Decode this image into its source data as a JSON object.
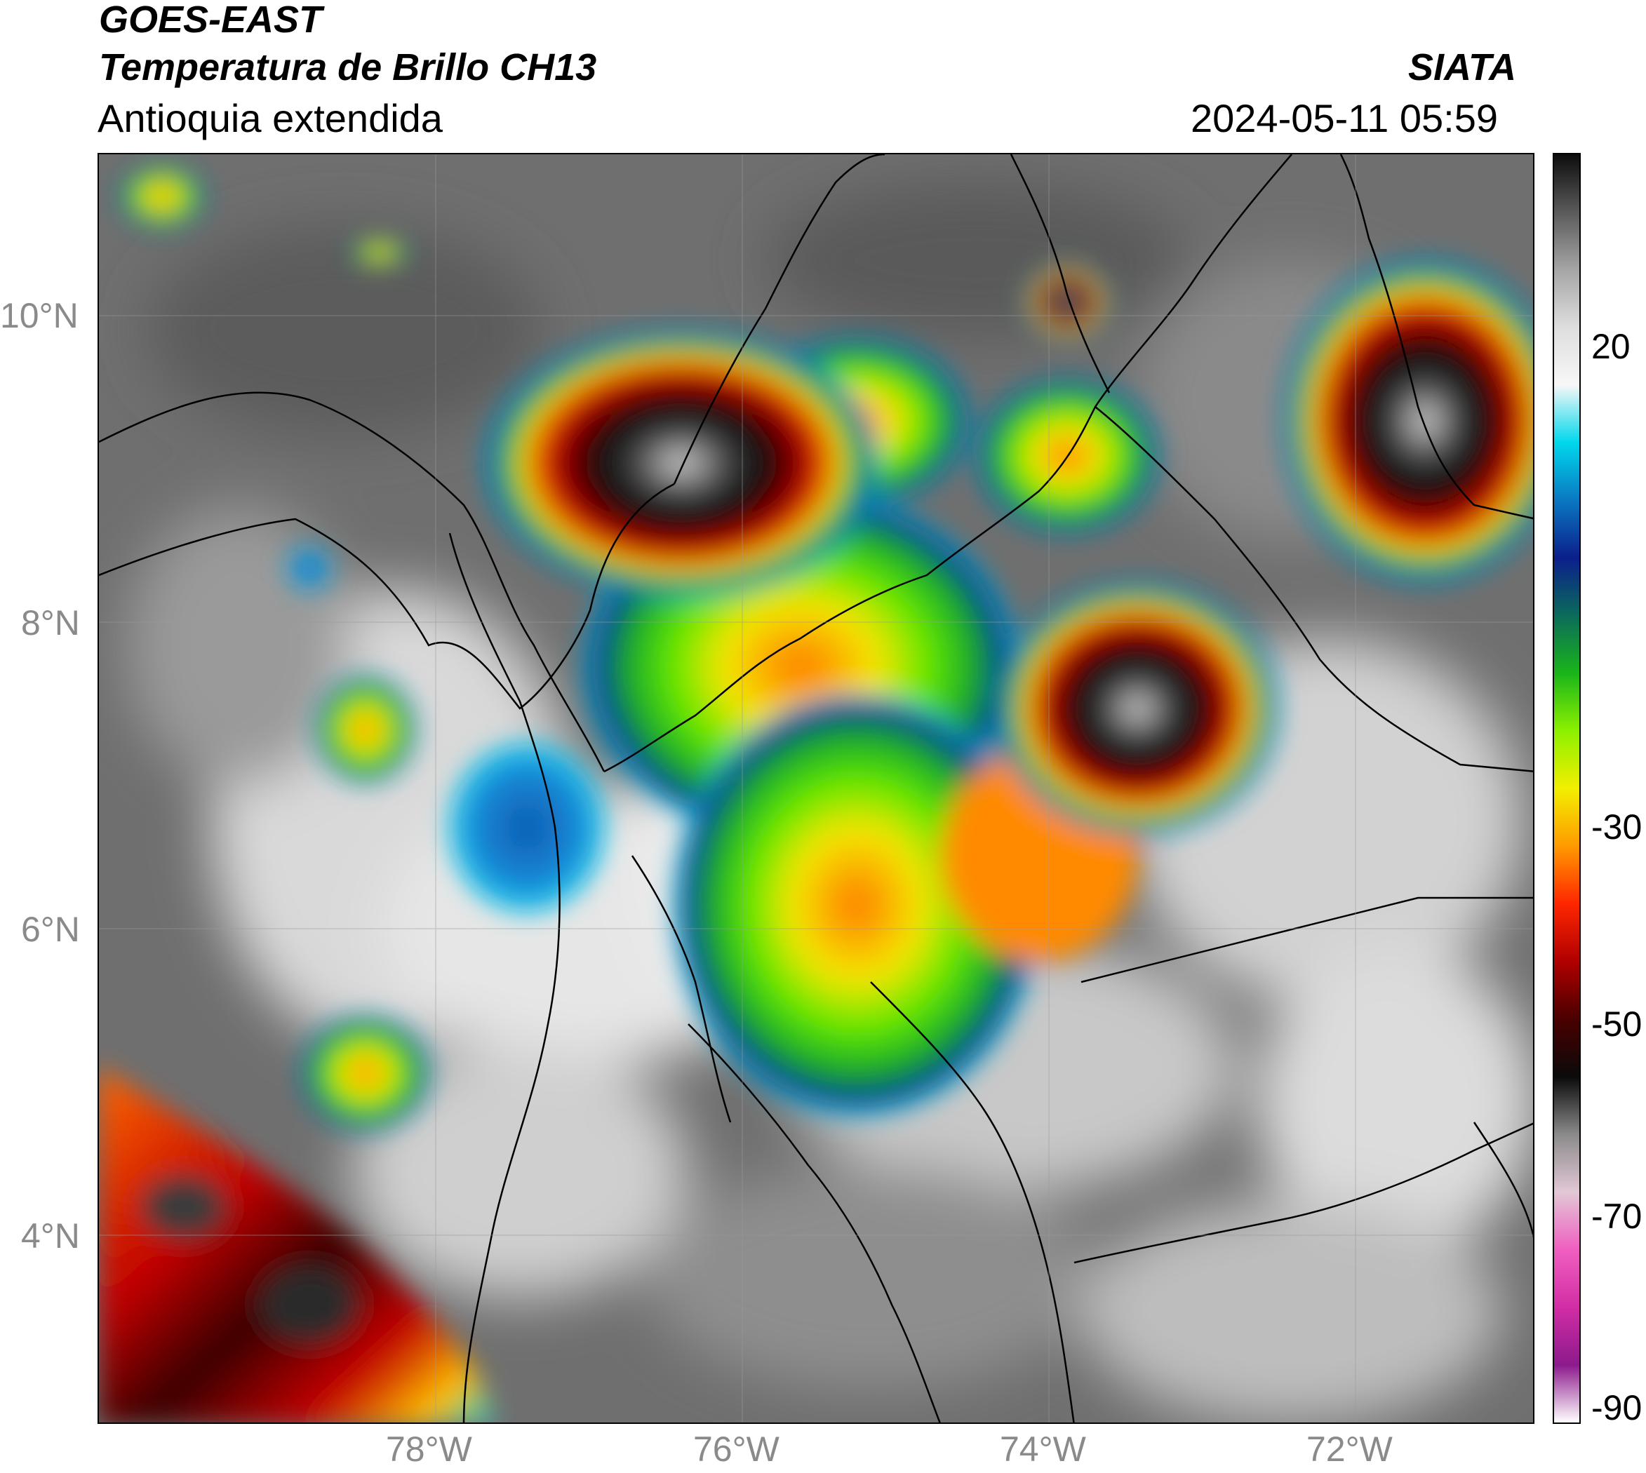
{
  "header": {
    "satellite": "GOES-EAST",
    "product": "Temperatura de Brillo CH13",
    "region": "Antioquia extendida",
    "agency": "SIATA",
    "datetime": "2024-05-11 05:59"
  },
  "axes": {
    "lat_ticks": [
      "10°N",
      "8°N",
      "6°N",
      "4°N"
    ],
    "lon_ticks": [
      "78°W",
      "76°W",
      "74°W",
      "72°W"
    ],
    "lat_range": [
      2.6,
      10.9
    ],
    "lon_range": [
      -80.2,
      -70.8
    ]
  },
  "colorbar": {
    "labels": [
      "20",
      "-30",
      "-50",
      "-70",
      "-90"
    ],
    "stops": [
      "#0d0d0d",
      "#5a5a5a",
      "#a5a5a5",
      "#dedede",
      "#f7f7f7",
      "#00d8ec",
      "#0a78c2",
      "#0b1f8c",
      "#0b6b5a",
      "#1ab51a",
      "#8cf000",
      "#f2ef00",
      "#ff9a00",
      "#ff2600",
      "#b00000",
      "#4a0000",
      "#0a0a0a",
      "#8a8a8a",
      "#e2c8d6",
      "#ef5fc0",
      "#d22da5",
      "#8c1a8c",
      "#ffffff"
    ]
  }
}
